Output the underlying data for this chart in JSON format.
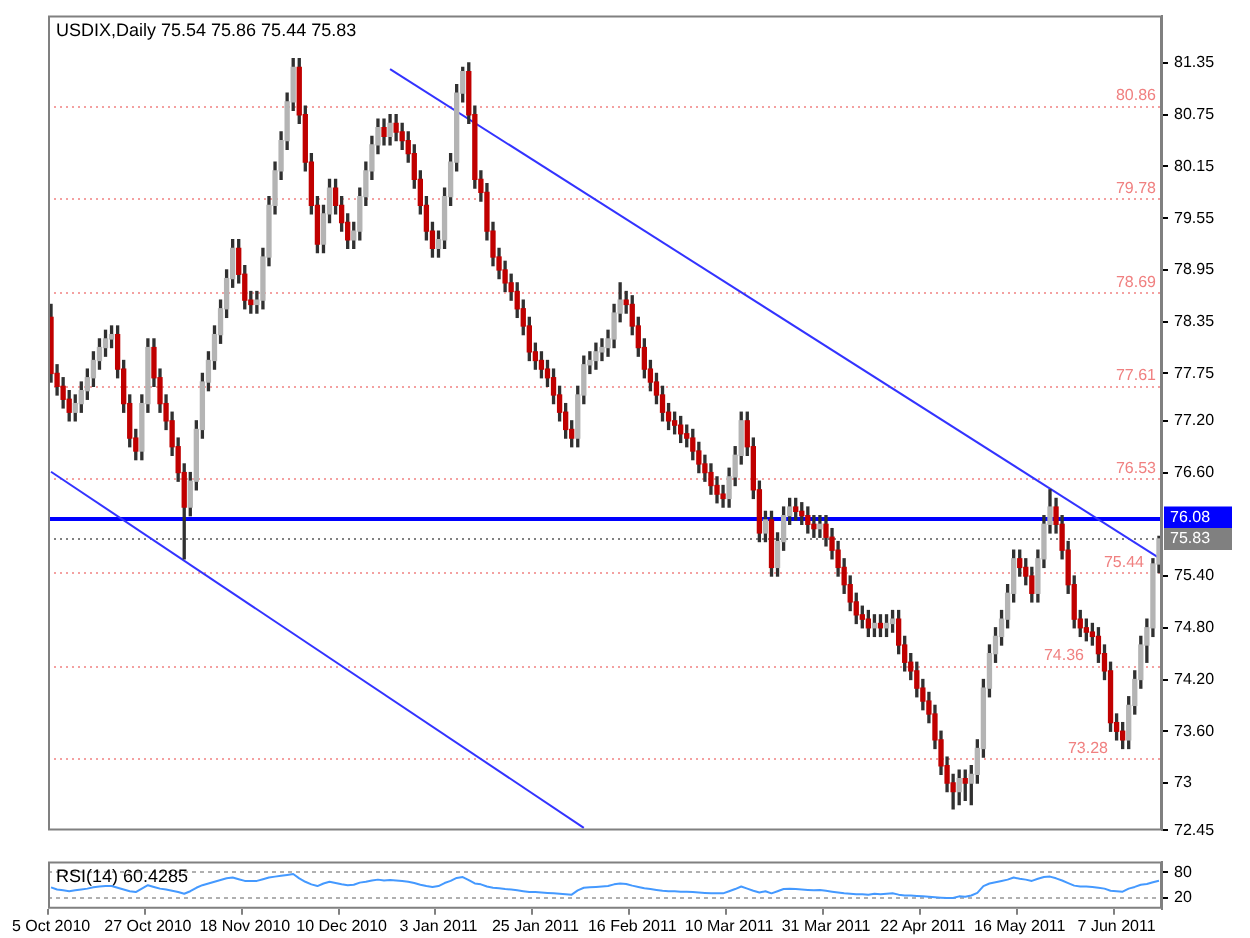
{
  "chart_data": [
    {
      "type": "candlestick",
      "title": "USDIX,Daily 75.54 75.86 75.44 75.83",
      "categories": [
        null,
        null,
        null,
        null,
        null,
        null,
        null,
        null,
        null,
        null,
        null,
        null,
        null,
        null,
        null,
        null,
        null,
        null,
        null,
        null,
        null,
        null,
        null,
        null,
        null,
        null,
        null,
        null,
        null,
        null,
        null,
        null,
        null,
        null,
        null,
        null,
        null,
        null,
        null,
        null,
        null,
        null,
        null,
        null,
        null,
        null,
        null,
        null,
        null,
        null,
        null,
        null,
        null,
        null,
        null,
        null,
        null,
        null,
        null,
        null,
        null,
        null,
        null,
        null,
        null,
        null,
        null,
        null,
        null,
        null,
        null,
        null,
        null,
        null,
        null,
        null,
        null,
        null,
        null,
        null,
        null,
        null,
        null,
        null,
        null,
        null,
        null,
        null,
        null,
        null,
        null,
        null,
        null,
        null,
        null,
        null,
        null,
        null,
        null,
        null,
        null,
        null,
        null,
        null,
        null,
        null,
        null,
        null,
        null,
        null,
        null,
        null,
        null,
        null,
        null,
        null,
        null,
        null,
        null,
        null,
        null,
        null,
        null,
        null,
        null,
        null,
        null,
        null,
        null,
        null,
        null,
        null,
        null,
        null,
        null,
        null,
        null,
        null,
        null,
        null,
        null,
        null,
        null,
        null,
        null,
        null,
        null,
        null,
        null,
        null,
        null,
        null,
        null,
        null,
        null,
        null,
        null,
        null,
        null,
        null,
        null,
        null,
        null,
        null,
        null,
        null,
        null,
        null,
        null,
        null,
        null,
        null,
        null,
        null,
        null,
        null,
        null,
        null,
        null,
        null,
        null,
        null,
        null,
        null
      ],
      "ohlc": [
        [
          78.4,
          78.55,
          77.65,
          77.75
        ],
        [
          77.75,
          77.85,
          77.5,
          77.6
        ],
        [
          77.6,
          77.7,
          77.35,
          77.45
        ],
        [
          77.45,
          77.55,
          77.2,
          77.3
        ],
        [
          77.3,
          77.5,
          77.2,
          77.4
        ],
        [
          77.4,
          77.65,
          77.3,
          77.55
        ],
        [
          77.55,
          77.8,
          77.45,
          77.7
        ],
        [
          77.7,
          78.0,
          77.6,
          77.9
        ],
        [
          77.9,
          78.15,
          77.8,
          78.05
        ],
        [
          78.05,
          78.25,
          77.95,
          78.15
        ],
        [
          78.15,
          78.3,
          78.05,
          78.2
        ],
        [
          78.2,
          78.3,
          77.7,
          77.8
        ],
        [
          77.8,
          77.9,
          77.3,
          77.4
        ],
        [
          77.4,
          77.5,
          76.9,
          77.0
        ],
        [
          77.0,
          77.1,
          76.75,
          76.85
        ],
        [
          76.85,
          77.5,
          76.75,
          77.4
        ],
        [
          77.4,
          78.15,
          77.3,
          78.05
        ],
        [
          78.05,
          78.15,
          77.6,
          77.7
        ],
        [
          77.7,
          77.8,
          77.3,
          77.4
        ],
        [
          77.4,
          77.5,
          77.1,
          77.2
        ],
        [
          77.2,
          77.3,
          76.8,
          76.9
        ],
        [
          76.9,
          77.0,
          76.5,
          76.6
        ],
        [
          76.6,
          76.7,
          75.6,
          76.2
        ],
        [
          76.2,
          76.6,
          76.1,
          76.5
        ],
        [
          76.5,
          77.2,
          76.4,
          77.1
        ],
        [
          77.1,
          77.75,
          77.0,
          77.65
        ],
        [
          77.65,
          78.0,
          77.55,
          77.9
        ],
        [
          77.9,
          78.3,
          77.8,
          78.2
        ],
        [
          78.2,
          78.6,
          78.1,
          78.5
        ],
        [
          78.5,
          78.95,
          78.4,
          78.85
        ],
        [
          78.85,
          79.3,
          78.75,
          79.2
        ],
        [
          79.2,
          79.3,
          78.8,
          78.9
        ],
        [
          78.9,
          79.0,
          78.5,
          78.6
        ],
        [
          78.6,
          78.7,
          78.45,
          78.55
        ],
        [
          78.55,
          78.7,
          78.45,
          78.6
        ],
        [
          78.6,
          79.2,
          78.5,
          79.1
        ],
        [
          79.1,
          79.8,
          79.0,
          79.7
        ],
        [
          79.7,
          80.2,
          79.6,
          80.1
        ],
        [
          80.1,
          80.55,
          80.0,
          80.45
        ],
        [
          80.45,
          81.0,
          80.35,
          80.9
        ],
        [
          80.9,
          81.4,
          80.8,
          81.3
        ],
        [
          81.3,
          81.4,
          80.65,
          80.75
        ],
        [
          80.75,
          80.85,
          80.1,
          80.2
        ],
        [
          80.2,
          80.3,
          79.6,
          79.7
        ],
        [
          79.7,
          79.8,
          79.15,
          79.25
        ],
        [
          79.25,
          79.7,
          79.15,
          79.6
        ],
        [
          79.6,
          80.0,
          79.5,
          79.9
        ],
        [
          79.9,
          80.0,
          79.6,
          79.7
        ],
        [
          79.7,
          79.8,
          79.4,
          79.5
        ],
        [
          79.5,
          79.6,
          79.2,
          79.3
        ],
        [
          79.3,
          79.5,
          79.2,
          79.4
        ],
        [
          79.4,
          79.9,
          79.3,
          79.8
        ],
        [
          79.8,
          80.2,
          79.7,
          80.1
        ],
        [
          80.1,
          80.5,
          80.0,
          80.4
        ],
        [
          80.4,
          80.7,
          80.3,
          80.6
        ],
        [
          80.6,
          80.7,
          80.4,
          80.5
        ],
        [
          80.5,
          80.75,
          80.4,
          80.65
        ],
        [
          80.65,
          80.75,
          80.45,
          80.55
        ],
        [
          80.55,
          80.65,
          80.35,
          80.45
        ],
        [
          80.45,
          80.55,
          80.2,
          80.3
        ],
        [
          80.3,
          80.4,
          79.9,
          80.0
        ],
        [
          80.0,
          80.1,
          79.6,
          79.7
        ],
        [
          79.7,
          79.8,
          79.3,
          79.4
        ],
        [
          79.4,
          79.5,
          79.1,
          79.2
        ],
        [
          79.2,
          79.4,
          79.1,
          79.3
        ],
        [
          79.3,
          79.9,
          79.2,
          79.8
        ],
        [
          79.8,
          80.3,
          79.7,
          80.2
        ],
        [
          80.2,
          81.1,
          80.1,
          81.0
        ],
        [
          81.0,
          81.3,
          80.9,
          81.25
        ],
        [
          81.25,
          81.35,
          80.65,
          80.75
        ],
        [
          80.75,
          80.85,
          79.9,
          80.0
        ],
        [
          80.0,
          80.1,
          79.75,
          79.85
        ],
        [
          79.85,
          79.95,
          79.3,
          79.4
        ],
        [
          79.4,
          79.5,
          79.0,
          79.1
        ],
        [
          79.1,
          79.2,
          78.85,
          78.95
        ],
        [
          78.95,
          79.05,
          78.7,
          78.8
        ],
        [
          78.8,
          78.9,
          78.6,
          78.7
        ],
        [
          78.7,
          78.8,
          78.4,
          78.5
        ],
        [
          78.5,
          78.6,
          78.2,
          78.3
        ],
        [
          78.3,
          78.4,
          77.9,
          78.0
        ],
        [
          78.0,
          78.1,
          77.8,
          77.9
        ],
        [
          77.9,
          78.0,
          77.7,
          77.8
        ],
        [
          77.8,
          77.9,
          77.6,
          77.7
        ],
        [
          77.7,
          77.8,
          77.4,
          77.5
        ],
        [
          77.5,
          77.6,
          77.2,
          77.3
        ],
        [
          77.3,
          77.4,
          77.0,
          77.1
        ],
        [
          77.1,
          77.2,
          76.9,
          77.0
        ],
        [
          77.0,
          77.6,
          76.9,
          77.5
        ],
        [
          77.5,
          77.95,
          77.4,
          77.85
        ],
        [
          77.85,
          78.0,
          77.75,
          77.9
        ],
        [
          77.9,
          78.1,
          77.8,
          78.0
        ],
        [
          78.0,
          78.15,
          77.9,
          78.05
        ],
        [
          78.05,
          78.25,
          77.95,
          78.15
        ],
        [
          78.15,
          78.55,
          78.05,
          78.45
        ],
        [
          78.45,
          78.8,
          78.35,
          78.6
        ],
        [
          78.6,
          78.7,
          78.45,
          78.55
        ],
        [
          78.55,
          78.65,
          78.2,
          78.3
        ],
        [
          78.3,
          78.4,
          77.95,
          78.05
        ],
        [
          78.05,
          78.15,
          77.7,
          77.8
        ],
        [
          77.8,
          77.9,
          77.55,
          77.65
        ],
        [
          77.65,
          77.75,
          77.4,
          77.5
        ],
        [
          77.5,
          77.6,
          77.2,
          77.3
        ],
        [
          77.3,
          77.4,
          77.1,
          77.2
        ],
        [
          77.2,
          77.3,
          77.05,
          77.15
        ],
        [
          77.15,
          77.25,
          76.95,
          77.05
        ],
        [
          77.05,
          77.15,
          76.9,
          77.0
        ],
        [
          77.0,
          77.1,
          76.75,
          76.85
        ],
        [
          76.85,
          76.95,
          76.6,
          76.7
        ],
        [
          76.7,
          76.8,
          76.5,
          76.6
        ],
        [
          76.6,
          76.7,
          76.35,
          76.45
        ],
        [
          76.45,
          76.55,
          76.25,
          76.35
        ],
        [
          76.35,
          76.45,
          76.2,
          76.3
        ],
        [
          76.3,
          76.65,
          76.2,
          76.55
        ],
        [
          76.55,
          76.9,
          76.45,
          76.8
        ],
        [
          76.8,
          77.3,
          76.7,
          77.2
        ],
        [
          77.2,
          77.3,
          76.8,
          76.9
        ],
        [
          76.9,
          77.0,
          76.3,
          76.4
        ],
        [
          76.4,
          76.5,
          75.8,
          75.9
        ],
        [
          75.9,
          76.15,
          75.8,
          76.05
        ],
        [
          76.05,
          76.15,
          75.4,
          75.5
        ],
        [
          75.5,
          75.9,
          75.4,
          75.8
        ],
        [
          75.8,
          76.2,
          75.7,
          76.1
        ],
        [
          76.1,
          76.3,
          76.0,
          76.2
        ],
        [
          76.2,
          76.3,
          76.05,
          76.15
        ],
        [
          76.15,
          76.25,
          76.0,
          76.1
        ],
        [
          76.1,
          76.2,
          75.9,
          76.0
        ],
        [
          76.0,
          76.1,
          75.85,
          75.95
        ],
        [
          75.95,
          76.1,
          75.85,
          76.0
        ],
        [
          76.0,
          76.1,
          75.75,
          75.85
        ],
        [
          75.85,
          75.95,
          75.6,
          75.7
        ],
        [
          75.7,
          75.8,
          75.4,
          75.5
        ],
        [
          75.5,
          75.6,
          75.2,
          75.3
        ],
        [
          75.3,
          75.4,
          75.0,
          75.1
        ],
        [
          75.1,
          75.2,
          74.85,
          74.95
        ],
        [
          74.95,
          75.05,
          74.8,
          74.9
        ],
        [
          74.9,
          75.0,
          74.7,
          74.8
        ],
        [
          74.8,
          74.95,
          74.7,
          74.85
        ],
        [
          74.85,
          74.95,
          74.7,
          74.8
        ],
        [
          74.8,
          74.95,
          74.7,
          74.85
        ],
        [
          74.85,
          75.0,
          74.75,
          74.9
        ],
        [
          74.9,
          75.0,
          74.5,
          74.6
        ],
        [
          74.6,
          74.7,
          74.3,
          74.4
        ],
        [
          74.4,
          74.5,
          74.2,
          74.3
        ],
        [
          74.3,
          74.4,
          74.0,
          74.1
        ],
        [
          74.1,
          74.2,
          73.85,
          73.95
        ],
        [
          73.95,
          74.05,
          73.7,
          73.8
        ],
        [
          73.8,
          73.9,
          73.4,
          73.5
        ],
        [
          73.5,
          73.6,
          73.1,
          73.2
        ],
        [
          73.2,
          73.3,
          72.9,
          73.0
        ],
        [
          73.0,
          73.1,
          72.7,
          72.9
        ],
        [
          72.9,
          73.15,
          72.75,
          73.05
        ],
        [
          73.05,
          73.15,
          72.8,
          73.0
        ],
        [
          73.0,
          73.2,
          72.75,
          73.1
        ],
        [
          73.1,
          73.5,
          73.0,
          73.4
        ],
        [
          73.4,
          74.2,
          73.3,
          74.1
        ],
        [
          74.1,
          74.6,
          74.0,
          74.5
        ],
        [
          74.5,
          74.8,
          74.4,
          74.7
        ],
        [
          74.7,
          75.0,
          74.6,
          74.9
        ],
        [
          74.9,
          75.3,
          74.8,
          75.2
        ],
        [
          75.2,
          75.7,
          75.1,
          75.6
        ],
        [
          75.6,
          75.7,
          75.4,
          75.5
        ],
        [
          75.5,
          75.6,
          75.3,
          75.4
        ],
        [
          75.4,
          75.5,
          75.1,
          75.2
        ],
        [
          75.2,
          75.7,
          75.1,
          75.6
        ],
        [
          75.6,
          76.1,
          75.5,
          76.0
        ],
        [
          76.0,
          76.4,
          75.9,
          76.2
        ],
        [
          76.2,
          76.3,
          75.9,
          76.0
        ],
        [
          76.0,
          76.1,
          75.6,
          75.7
        ],
        [
          75.7,
          75.8,
          75.2,
          75.3
        ],
        [
          75.3,
          75.4,
          74.8,
          74.9
        ],
        [
          74.9,
          75.0,
          74.7,
          74.8
        ],
        [
          74.8,
          74.9,
          74.65,
          74.75
        ],
        [
          74.75,
          74.85,
          74.6,
          74.7
        ],
        [
          74.7,
          74.8,
          74.4,
          74.5
        ],
        [
          74.5,
          74.6,
          74.2,
          74.3
        ],
        [
          74.3,
          74.4,
          73.6,
          73.7
        ],
        [
          73.7,
          73.8,
          73.5,
          73.6
        ],
        [
          73.6,
          73.7,
          73.4,
          73.5
        ],
        [
          73.5,
          74.0,
          73.4,
          73.9
        ],
        [
          73.9,
          74.3,
          73.8,
          74.2
        ],
        [
          74.2,
          74.7,
          74.1,
          74.6
        ],
        [
          74.6,
          74.9,
          74.4,
          74.8
        ],
        [
          74.8,
          75.6,
          74.7,
          75.54
        ],
        [
          75.54,
          75.86,
          75.44,
          75.83
        ]
      ],
      "series": [
        {
          "type": "line",
          "color": "#3333ff",
          "values": [
            null,
            null,
            null,
            null,
            null,
            null,
            null,
            null,
            null,
            null,
            null,
            null,
            null,
            null,
            null,
            null,
            null,
            null,
            null,
            null,
            null,
            null,
            null,
            null,
            null,
            null,
            null,
            null,
            null,
            null,
            null,
            null,
            null,
            null,
            null,
            null,
            null,
            null,
            null,
            null,
            null,
            null,
            null,
            null,
            null,
            null,
            null,
            null,
            null,
            null,
            null,
            null,
            null,
            null,
            null,
            null,
            81.28,
            null,
            null,
            null,
            null,
            null,
            null,
            null,
            null,
            null,
            null,
            null,
            null,
            null,
            null,
            null,
            null,
            null,
            null,
            null,
            null,
            null,
            null,
            null,
            null,
            null,
            null,
            null,
            null,
            null,
            null,
            null,
            null,
            null,
            null,
            null,
            null,
            null,
            null,
            null,
            null,
            null,
            null,
            null,
            null,
            null,
            null,
            null,
            null,
            null,
            null,
            null,
            null,
            null,
            null,
            null,
            null,
            null,
            null,
            null,
            null,
            null,
            null,
            null,
            null,
            null,
            null,
            null,
            null,
            null,
            null,
            null,
            null,
            null,
            null,
            null,
            null,
            null,
            null,
            null,
            null,
            null,
            null,
            null,
            null,
            null,
            null,
            null,
            null,
            null,
            null,
            null,
            null,
            null,
            null,
            null,
            null,
            null,
            null,
            null,
            null,
            null,
            null,
            null,
            null,
            null,
            null,
            null,
            null,
            null,
            null,
            null,
            null,
            null,
            null,
            null,
            null,
            null,
            null,
            null,
            null,
            null,
            null,
            null,
            null,
            null,
            null,
            75.61
          ]
        },
        {
          "type": "line",
          "color": "#3333ff",
          "values": [
            76.61,
            null,
            null,
            null,
            null,
            null,
            null,
            null,
            null,
            null,
            null,
            null,
            null,
            null,
            null,
            null,
            null,
            null,
            null,
            null,
            null,
            null,
            null,
            null,
            null,
            null,
            null,
            null,
            null,
            null,
            null,
            null,
            null,
            null,
            null,
            null,
            null,
            null,
            null,
            null,
            null,
            null,
            null,
            null,
            null,
            null,
            null,
            null,
            null,
            null,
            null,
            null,
            null,
            null,
            null,
            null,
            null,
            null,
            null,
            null,
            null,
            null,
            null,
            null,
            null,
            null,
            null,
            null,
            null,
            null,
            null,
            null,
            null,
            null,
            null,
            null,
            null,
            null,
            null,
            null,
            null,
            null,
            null,
            null,
            null,
            null,
            null,
            null,
            72.48,
            null,
            null,
            null,
            null,
            null,
            null,
            null,
            null,
            null,
            null,
            null,
            null,
            null,
            null,
            null,
            null,
            null,
            null,
            null,
            null,
            null,
            null,
            null,
            null,
            null,
            null,
            null,
            null,
            null,
            null,
            null,
            null,
            null,
            null,
            null,
            null,
            null,
            null,
            null,
            null,
            null,
            null,
            null,
            null,
            null,
            null,
            null,
            null,
            null,
            null,
            null,
            null,
            null,
            null,
            null,
            null,
            null,
            null,
            null,
            null,
            null,
            null,
            null,
            null,
            null,
            null,
            null,
            null,
            null,
            null,
            null,
            null,
            null,
            null,
            null,
            null,
            null,
            null,
            null,
            null,
            null,
            null,
            null,
            null,
            null,
            null,
            null,
            null,
            null,
            null,
            null,
            null,
            null,
            null,
            null
          ]
        }
      ],
      "ylim": [
        72.45,
        81.9
      ],
      "yticks": [
        72.45,
        73.0,
        {
          "value": 73.6,
          "label": "73.60"
        },
        {
          "value": 74.2,
          "label": "74.20"
        },
        {
          "value": 74.8,
          "label": "74.80"
        },
        {
          "value": 75.4,
          "label": "75.40"
        },
        {
          "value": 76.6,
          "label": "76.60"
        },
        {
          "value": 77.2,
          "label": "77.20"
        },
        77.75,
        78.35,
        78.95,
        79.55,
        80.15,
        80.75,
        81.35
      ],
      "grid": false,
      "legend": false,
      "ref_lines": [
        {
          "axis": "y",
          "value": 80.86,
          "color": "#f4a0a0",
          "line_style": "dotted"
        },
        {
          "axis": "y",
          "value": 79.78,
          "color": "#f4a0a0",
          "line_style": "dotted"
        },
        {
          "axis": "y",
          "value": 78.69,
          "color": "#f4a0a0",
          "line_style": "dotted"
        },
        {
          "axis": "y",
          "value": 77.61,
          "color": "#f4a0a0",
          "line_style": "dotted"
        },
        {
          "axis": "y",
          "value": 76.53,
          "color": "#f4a0a0",
          "line_style": "dotted"
        },
        {
          "axis": "y",
          "value": 75.44,
          "color": "#f4a0a0",
          "line_style": "dotted"
        },
        {
          "axis": "y",
          "value": 74.36,
          "color": "#f4a0a0",
          "line_style": "dotted"
        },
        {
          "axis": "y",
          "value": 73.28,
          "color": "#f4a0a0",
          "line_style": "dotted"
        },
        {
          "axis": "y",
          "value": 76.08,
          "label": "76.08",
          "color": "#0000ff",
          "line_style": "solid"
        },
        {
          "axis": "y",
          "value": 75.83,
          "label": "75.83",
          "color": "#808080",
          "line_style": "dotted"
        }
      ],
      "annotations": [
        {
          "text": "80.86",
          "y": 80.86
        },
        {
          "text": "79.78",
          "y": 79.78
        },
        {
          "text": "78.69",
          "y": 78.69
        },
        {
          "text": "77.61",
          "y": 77.61
        },
        {
          "text": "76.53",
          "y": 76.53
        },
        {
          "text": "75.44",
          "y": 75.44
        },
        {
          "text": "74.36",
          "y": 74.36
        },
        {
          "text": "73.28",
          "y": 73.28
        }
      ]
    },
    {
      "type": "line",
      "title": "RSI(14) 60.4285",
      "categories": [
        "5 Oct 2010",
        null,
        null,
        null,
        null,
        null,
        null,
        null,
        null,
        null,
        null,
        null,
        null,
        null,
        null,
        null,
        "27 Oct 2010",
        null,
        null,
        null,
        null,
        null,
        null,
        null,
        null,
        null,
        null,
        null,
        null,
        null,
        null,
        null,
        "18 Nov 2010",
        null,
        null,
        null,
        null,
        null,
        null,
        null,
        null,
        null,
        null,
        null,
        null,
        null,
        null,
        null,
        "10 Dec 2010",
        null,
        null,
        null,
        null,
        null,
        null,
        null,
        null,
        null,
        null,
        null,
        null,
        null,
        null,
        null,
        "3 Jan 2011",
        null,
        null,
        null,
        null,
        null,
        null,
        null,
        null,
        null,
        null,
        null,
        null,
        null,
        null,
        null,
        "25 Jan 2011",
        null,
        null,
        null,
        null,
        null,
        null,
        null,
        null,
        null,
        null,
        null,
        null,
        null,
        null,
        null,
        "16 Feb 2011",
        null,
        null,
        null,
        null,
        null,
        null,
        null,
        null,
        null,
        null,
        null,
        null,
        null,
        null,
        null,
        "10 Mar 2011",
        null,
        null,
        null,
        null,
        null,
        null,
        null,
        null,
        null,
        null,
        null,
        null,
        null,
        null,
        null,
        "31 Mar 2011",
        null,
        null,
        null,
        null,
        null,
        null,
        null,
        null,
        null,
        null,
        null,
        null,
        null,
        null,
        null,
        "22 Apr 2011",
        null,
        null,
        null,
        null,
        null,
        null,
        null,
        null,
        null,
        null,
        null,
        null,
        null,
        null,
        null,
        "16 May 2011",
        null,
        null,
        null,
        null,
        null,
        null,
        null,
        null,
        null,
        null,
        null,
        null,
        null,
        null,
        null,
        "7 Jun 2011",
        null,
        null,
        null,
        null,
        null,
        null,
        null
      ],
      "values": [
        45,
        40,
        38,
        36,
        38,
        40,
        42,
        45,
        47,
        48,
        48,
        44,
        40,
        36,
        34,
        42,
        50,
        46,
        42,
        40,
        37,
        34,
        30,
        36,
        44,
        50,
        54,
        58,
        62,
        66,
        68,
        64,
        60,
        60,
        60,
        64,
        68,
        70,
        72,
        74,
        76,
        66,
        58,
        52,
        48,
        54,
        58,
        55,
        52,
        50,
        51,
        56,
        58,
        61,
        63,
        61,
        62,
        61,
        60,
        58,
        55,
        51,
        48,
        46,
        48,
        55,
        60,
        67,
        69,
        62,
        54,
        52,
        47,
        44,
        43,
        41,
        40,
        38,
        36,
        34,
        34,
        33,
        32,
        31,
        30,
        29,
        28,
        38,
        44,
        45,
        46,
        47,
        48,
        52,
        54,
        53,
        49,
        46,
        43,
        41,
        39,
        37,
        36,
        36,
        35,
        35,
        34,
        33,
        32,
        31,
        31,
        31,
        36,
        41,
        47,
        42,
        37,
        33,
        36,
        31,
        36,
        41,
        42,
        41,
        40,
        39,
        38,
        39,
        37,
        35,
        33,
        31,
        30,
        29,
        29,
        28,
        30,
        29,
        30,
        31,
        28,
        26,
        26,
        25,
        24,
        23,
        22,
        21,
        20,
        20,
        24,
        23,
        26,
        32,
        48,
        54,
        57,
        60,
        63,
        68,
        65,
        63,
        60,
        65,
        69,
        70,
        66,
        61,
        55,
        49,
        47,
        47,
        46,
        44,
        42,
        37,
        36,
        35,
        42,
        46,
        51,
        53,
        57,
        60.4285
      ],
      "color": "#4499ff",
      "ylim": [
        -5,
        105
      ],
      "yticks": [
        20,
        80
      ],
      "grid": "y",
      "legend": false
    }
  ]
}
